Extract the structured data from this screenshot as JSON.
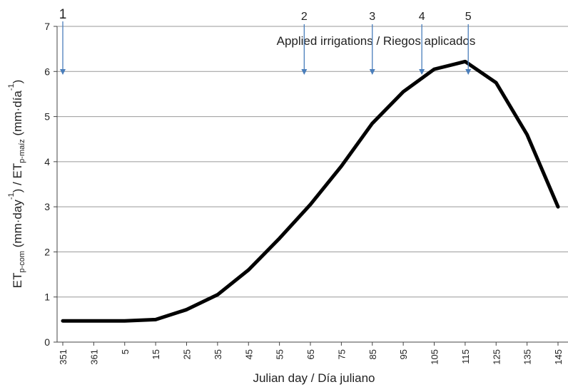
{
  "chart_data": {
    "type": "line",
    "categories": [
      "351",
      "361",
      "5",
      "15",
      "25",
      "35",
      "45",
      "55",
      "65",
      "75",
      "85",
      "95",
      "105",
      "115",
      "125",
      "135",
      "145"
    ],
    "series": [
      {
        "name": "ETp",
        "color": "#000000",
        "values": [
          0.47,
          0.47,
          0.47,
          0.5,
          0.72,
          1.05,
          1.6,
          2.3,
          3.05,
          3.9,
          4.85,
          5.55,
          6.05,
          6.22,
          5.75,
          4.6,
          3.0
        ]
      }
    ],
    "ylim": [
      0,
      7
    ],
    "yticks": [
      0,
      1,
      2,
      3,
      4,
      5,
      6,
      7
    ],
    "grid": true,
    "xlabel": "Julian day / Día juliano",
    "ylabel": [
      {
        "text": "ET"
      },
      {
        "text": "p-com",
        "sub": true
      },
      {
        "text": " (mm·day"
      },
      {
        "text": "-1",
        "sup": true
      },
      {
        "text": ") / ET"
      },
      {
        "text": "p-maíz",
        "sub": true
      },
      {
        "text": " (mm·día"
      },
      {
        "text": "-1",
        "sup": true
      },
      {
        "text": ")"
      }
    ],
    "annotation": "Applied irrigations / Riegos aplicados",
    "irrigations": [
      {
        "label": "1",
        "day": 351
      },
      {
        "label": "2",
        "day": 63
      },
      {
        "label": "3",
        "day": 85
      },
      {
        "label": "4",
        "day": 101
      },
      {
        "label": "5",
        "day": 116
      }
    ],
    "arrow_color": "#4a7ebb"
  }
}
